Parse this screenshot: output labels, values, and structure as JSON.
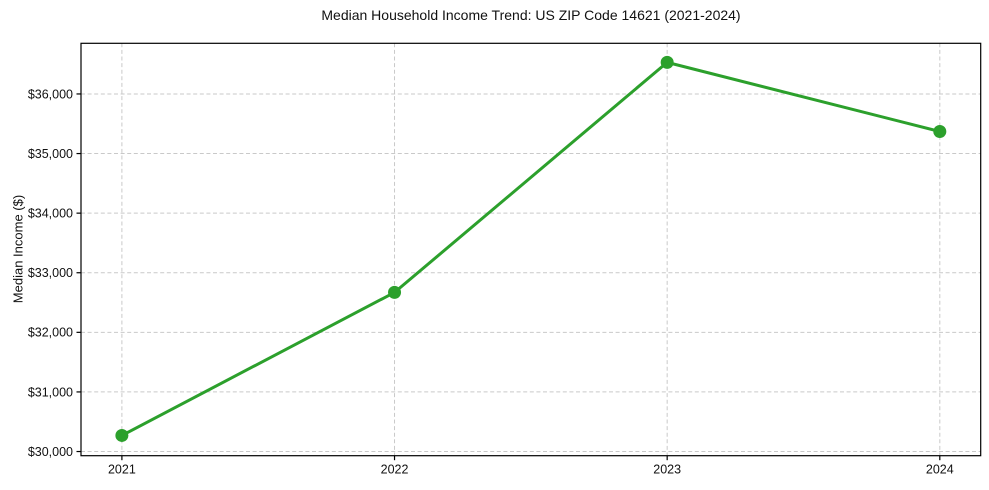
{
  "chart_data": {
    "type": "line",
    "title": "Median Household Income Trend: US ZIP Code 14621 (2021-2024)",
    "xlabel": "",
    "ylabel": "Median Income ($)",
    "x": [
      2021,
      2022,
      2023,
      2024
    ],
    "values": [
      30270,
      32670,
      36530,
      35370
    ],
    "series_name": "Median household income",
    "xticks": [
      {
        "v": 2021,
        "label": "2021"
      },
      {
        "v": 2022,
        "label": "2022"
      },
      {
        "v": 2023,
        "label": "2023"
      },
      {
        "v": 2024,
        "label": "2024"
      }
    ],
    "yticks": [
      {
        "v": 30000,
        "label": "$30,000"
      },
      {
        "v": 31000,
        "label": "$31,000"
      },
      {
        "v": 32000,
        "label": "$32,000"
      },
      {
        "v": 33000,
        "label": "$33,000"
      },
      {
        "v": 34000,
        "label": "$34,000"
      },
      {
        "v": 35000,
        "label": "$35,000"
      },
      {
        "v": 36000,
        "label": "$36,000"
      }
    ],
    "xlim": [
      2020.85,
      2024.15
    ],
    "ylim": [
      29930,
      36850
    ],
    "grid": true,
    "grid_style": "dashed",
    "legend": "none",
    "marker": "circle",
    "marker_radius": 6.5,
    "colors": {
      "line": "#2ca02c",
      "grid": "#c9c9c9",
      "axis": "#000000",
      "text": "#111111",
      "background": "#ffffff"
    }
  }
}
